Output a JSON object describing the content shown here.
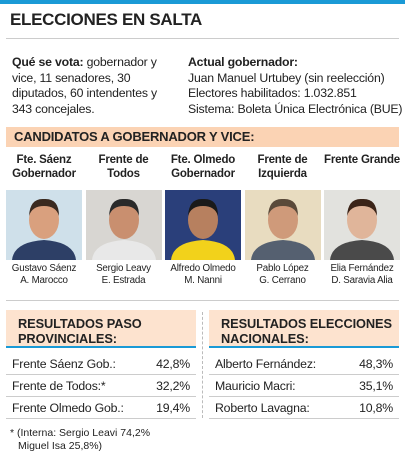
{
  "header": {
    "title": "ELECCIONES EN SALTA"
  },
  "info": {
    "left": {
      "label": "Qué se vota:",
      "text": "gobernador y vice, 11 senadores, 30 diputados, 60 intendentes y 343 concejales."
    },
    "right": {
      "label": "Actual gobernador:",
      "lines": [
        "Juan Manuel Urtubey (sin reelección)",
        "Electores habilitados: 1.032.851",
        "Sistema: Boleta Única Electrónica (BUE)"
      ]
    }
  },
  "candidates": {
    "title": "CANDIDATOS A GOBERNADOR Y VICE:",
    "items": [
      {
        "party": "Fte. Sáenz Gobernador",
        "governor": "Gustavo Sáenz",
        "vice": "A. Marocco"
      },
      {
        "party": "Frente de Todos",
        "governor": "Sergio Leavy",
        "vice": "E. Estrada"
      },
      {
        "party": "Fte. Olmedo Gobernador",
        "governor": "Alfredo Olmedo",
        "vice": "M. Nanni"
      },
      {
        "party": "Frente de Izquierda",
        "governor": "Pablo López",
        "vice": "G. Cerrano"
      },
      {
        "party": "Frente Grande",
        "governor": "Elia Fernández",
        "vice": "D. Saravia Alia"
      }
    ]
  },
  "results_paso": {
    "title": "RESULTADOS PASO PROVINCIALES:",
    "rows": [
      [
        "Frente Sáenz Gob.:",
        "42,8%"
      ],
      [
        "Frente de Todos:*",
        "32,2%"
      ],
      [
        "Frente Olmedo Gob.:",
        "19,4%"
      ]
    ]
  },
  "results_nacionales": {
    "title": "RESULTADOS ELECCIONES NACIONALES:",
    "rows": [
      [
        "Alberto Fernández:",
        "48,3%"
      ],
      [
        "Mauricio Macri:",
        "35,1%"
      ],
      [
        "Roberto Lavagna:",
        "10,8%"
      ]
    ]
  },
  "footnote": {
    "lines": [
      "* (Interna: Sergio Leavi 74,2%",
      "Miguel Isa 25,8%)"
    ]
  }
}
